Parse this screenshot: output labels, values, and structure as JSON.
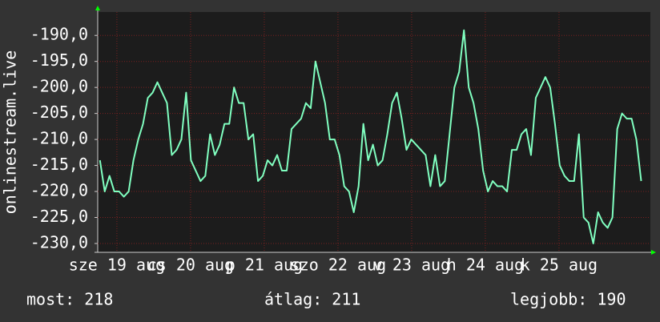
{
  "chart_data": {
    "type": "line",
    "y_label": "onlinestream.live",
    "x": [
      18.77,
      18.835,
      18.9,
      18.965,
      19.03,
      19.095,
      19.16,
      19.225,
      19.29,
      19.355,
      19.42,
      19.485,
      19.55,
      19.615,
      19.68,
      19.745,
      19.81,
      19.875,
      19.94,
      20.005,
      20.07,
      20.135,
      20.2,
      20.265,
      20.33,
      20.395,
      20.46,
      20.525,
      20.59,
      20.655,
      20.72,
      20.785,
      20.85,
      20.915,
      20.98,
      21.045,
      21.11,
      21.175,
      21.24,
      21.305,
      21.37,
      21.435,
      21.5,
      21.565,
      21.63,
      21.695,
      21.76,
      21.825,
      21.89,
      21.955,
      22.02,
      22.085,
      22.15,
      22.215,
      22.28,
      22.345,
      22.41,
      22.475,
      22.54,
      22.605,
      22.67,
      22.735,
      22.8,
      22.865,
      22.93,
      22.995,
      23.06,
      23.125,
      23.19,
      23.255,
      23.32,
      23.385,
      23.45,
      23.515,
      23.58,
      23.645,
      23.71,
      23.775,
      23.84,
      23.905,
      23.97,
      24.035,
      24.1,
      24.165,
      24.23,
      24.295,
      24.36,
      24.425,
      24.49,
      24.555,
      24.62,
      24.685,
      24.75,
      24.815,
      24.88,
      24.945,
      25.01,
      25.075,
      25.14,
      25.205,
      25.27,
      25.335,
      25.4,
      25.465,
      25.53,
      25.595,
      25.66,
      25.725,
      25.79,
      25.855,
      25.92,
      25.985,
      26.05,
      26.115
    ],
    "series": [
      {
        "name": "onlinestream.live",
        "color": "#80ffc0",
        "values": [
          -214,
          -220,
          -217,
          -220,
          -220,
          -221,
          -220,
          -214,
          -210,
          -207,
          -202,
          -201,
          -199,
          -201,
          -203,
          -213,
          -212,
          -210,
          -201,
          -214,
          -216,
          -218,
          -217,
          -209,
          -213,
          -211,
          -207,
          -207,
          -200,
          -203,
          -203,
          -210,
          -209,
          -218,
          -217,
          -214,
          -215,
          -213,
          -216,
          -216,
          -208,
          -207,
          -206,
          -203,
          -204,
          -195,
          -199,
          -203,
          -210,
          -210,
          -213,
          -219,
          -220,
          -224,
          -219,
          -207,
          -214,
          -211,
          -215,
          -214,
          -209,
          -203,
          -201,
          -206,
          -212,
          -210,
          -211,
          -212,
          -213,
          -219,
          -213,
          -219,
          -218,
          -209,
          -200,
          -197,
          -189,
          -200,
          -203,
          -208,
          -216,
          -220,
          -218,
          -219,
          -219,
          -220,
          -212,
          -212,
          -209,
          -208,
          -213,
          -202,
          -200,
          -198,
          -200,
          -207,
          -215,
          -217,
          -218,
          -218,
          -209,
          -225,
          -226,
          -230,
          -224,
          -226,
          -227,
          -225,
          -208,
          -205,
          -206,
          -206,
          -210,
          -218
        ]
      }
    ],
    "xlim": [
      18.74,
      26.24
    ],
    "xticks": [
      {
        "value": 19,
        "label": "sze 19 aug"
      },
      {
        "value": 20,
        "label": "cs 20 aug"
      },
      {
        "value": 21,
        "label": "p 21 aug"
      },
      {
        "value": 22,
        "label": "szo 22 aug"
      },
      {
        "value": 23,
        "label": "v 23 aug"
      },
      {
        "value": 24,
        "label": "h 24 aug"
      },
      {
        "value": 25,
        "label": "k 25 aug"
      }
    ],
    "ylim": [
      -231.7,
      -185.5
    ],
    "yticks": [
      {
        "value": -190,
        "label": "-190,0"
      },
      {
        "value": -195,
        "label": "-195,0"
      },
      {
        "value": -200,
        "label": "-200,0"
      },
      {
        "value": -205,
        "label": "-205,0"
      },
      {
        "value": -210,
        "label": "-210,0"
      },
      {
        "value": -215,
        "label": "-215,0"
      },
      {
        "value": -220,
        "label": "-220,0"
      },
      {
        "value": -225,
        "label": "-225,0"
      },
      {
        "value": -230,
        "label": "-230,0"
      }
    ],
    "grid": true,
    "footer": [
      "most: 218",
      "átlag: 211",
      "legjobb: 190"
    ]
  }
}
